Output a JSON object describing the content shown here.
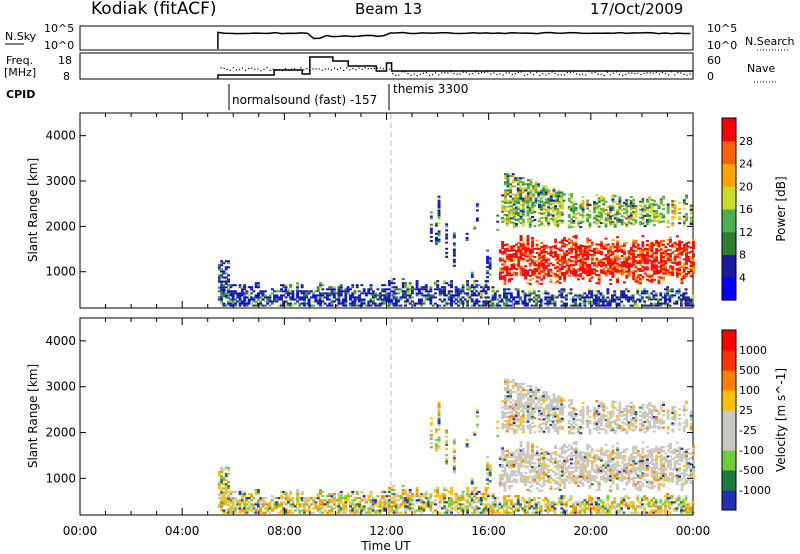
{
  "header": {
    "station": "Kodiak (fitACF)",
    "beam": "Beam 13",
    "date": "17/Oct/2009"
  },
  "status_panel": {
    "left_label": "N.Sky",
    "left_top": "10^5",
    "left_bottom": "10^0",
    "right_top": "10^5",
    "right_bottom": "10^0",
    "right_label": "N.Search"
  },
  "freq_panel": {
    "left_label_1": "Freq.",
    "left_label_2": "[MHz]",
    "left_top": "18",
    "left_bottom": "8",
    "right_top": "60",
    "right_bottom": "0",
    "right_label": "Nave"
  },
  "cpid": {
    "label": "CPID",
    "mode_1": "normalsound (fast)  -157",
    "mode_2": "themis 3300"
  },
  "colors": {
    "accent_red": "#ff0000",
    "accent_blue": "#1a1acc",
    "gray_scatter": "#c8c8c0",
    "dashed_line": "#bbbbbb"
  },
  "chart_data": [
    {
      "type": "heatmap",
      "title": "",
      "xlabel": "",
      "ylabel": "Slant Range [km]",
      "xlim": [
        "00:00",
        "24:00"
      ],
      "ylim": [
        200,
        4500
      ],
      "x_ticks": [
        "00:00",
        "04:00",
        "08:00",
        "12:00",
        "16:00",
        "20:00",
        "00:00"
      ],
      "y_ticks": [
        1000,
        2000,
        3000,
        4000
      ],
      "colorbar": {
        "label": "Power [dB]",
        "ticks": [
          "4",
          "8",
          "12",
          "16",
          "20",
          "24",
          "28"
        ],
        "colors": [
          "#0000ff",
          "#1a1aa0",
          "#2e7d32",
          "#4caf50",
          "#c8dc28",
          "#ffa500",
          "#ff6000",
          "#ff0000"
        ]
      },
      "scatter_regions": [
        {
          "t_start": 5.4,
          "t_end": 16.0,
          "r_min": 200,
          "r_max": 600,
          "level": "low-mid"
        },
        {
          "t_start": 16.5,
          "t_end": 24.0,
          "r_min": 700,
          "r_max": 1800,
          "level": "high"
        },
        {
          "t_start": 16.5,
          "t_end": 24.0,
          "r_min": 1800,
          "r_max": 3200,
          "level": "mid"
        }
      ]
    },
    {
      "type": "heatmap",
      "title": "",
      "xlabel": "Time UT",
      "ylabel": "Slant Range [km]",
      "xlim": [
        "00:00",
        "24:00"
      ],
      "ylim": [
        200,
        4500
      ],
      "x_ticks": [
        "00:00",
        "04:00",
        "08:00",
        "12:00",
        "16:00",
        "20:00",
        "00:00"
      ],
      "y_ticks": [
        1000,
        2000,
        3000,
        4000
      ],
      "colorbar": {
        "label": "Velocity  [m s^-1]",
        "ticks": [
          "1000",
          "500",
          "100",
          "25",
          "-25",
          "-100",
          "-500",
          "-1000"
        ],
        "colors": [
          "#2030b0",
          "#1a7a40",
          "#6ccf3a",
          "#c8c8c0",
          "#c8c8c0",
          "#ffc000",
          "#ff8000",
          "#ff3000",
          "#ff0000"
        ]
      }
    }
  ]
}
